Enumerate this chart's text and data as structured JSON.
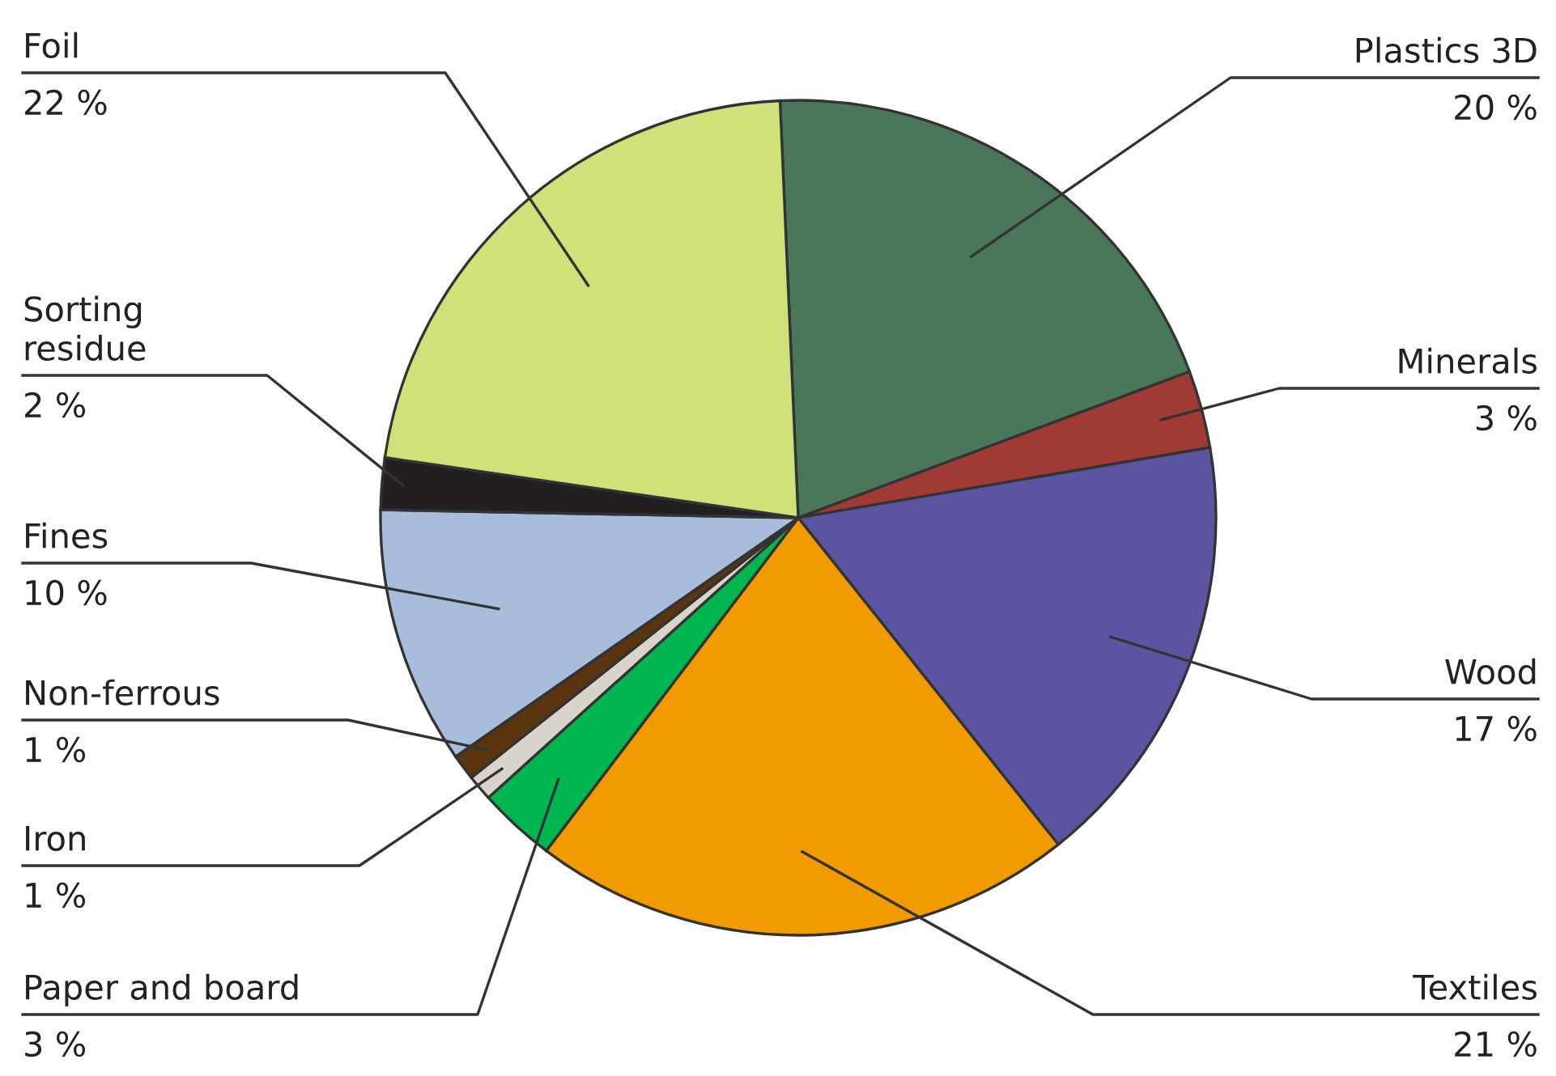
{
  "chart_data": {
    "type": "pie",
    "categories": [
      "Plastics 3D",
      "Minerals",
      "Wood",
      "Textiles",
      "Paper and board",
      "Iron",
      "Non-ferrous",
      "Fines",
      "Sorting\nresidue",
      "Foil"
    ],
    "values": [
      20,
      3,
      17,
      21,
      3,
      1,
      1,
      10,
      2,
      22
    ],
    "value_labels": [
      "20 %",
      "3 %",
      "17 %",
      "21 %",
      "3 %",
      "1 %",
      "1 %",
      "10 %",
      "2 %",
      "22 %"
    ],
    "colors": [
      "#4a765a",
      "#a03a35",
      "#5b54a0",
      "#f29b00",
      "#00b650",
      "#d8d4cc",
      "#5a3510",
      "#a8bcdc",
      "#231f20",
      "#cfe27a"
    ]
  }
}
